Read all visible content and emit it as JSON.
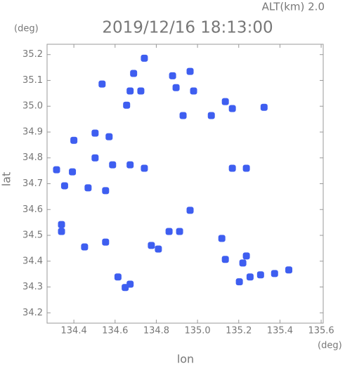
{
  "chart_data": {
    "type": "scatter",
    "title": "2019/12/16 18:13:00",
    "subtitle": "ALT(km)  2.0",
    "y_unit": "(deg)",
    "x_unit": "(deg)",
    "ylabel": "lat",
    "xlabel": "lon",
    "xlim": [
      134.27,
      135.61
    ],
    "ylim": [
      34.16,
      35.24
    ],
    "xticks": [
      134.4,
      134.6,
      134.8,
      {
        "value": 135,
        "label": "135.0"
      },
      135.2,
      135.4,
      135.6
    ],
    "yticks": [
      34.2,
      34.3,
      34.4,
      34.5,
      34.6,
      34.7,
      34.8,
      34.9,
      {
        "value": 35,
        "label": "35.0"
      },
      35.1,
      35.2
    ],
    "color": "#3e5ef0",
    "x": [
      134.537,
      134.69,
      134.742,
      134.673,
      134.725,
      134.879,
      134.964,
      134.896,
      134.981,
      135.135,
      135.169,
      135.323,
      135.067,
      134.93,
      134.656,
      134.503,
      134.4,
      134.571,
      134.503,
      134.588,
      134.673,
      134.742,
      134.316,
      134.393,
      134.355,
      134.469,
      134.554,
      135.169,
      135.237,
      134.34,
      134.34,
      134.862,
      134.913,
      134.81,
      134.776,
      134.554,
      134.452,
      135.118,
      135.22,
      135.255,
      135.203,
      135.306,
      135.374,
      135.443,
      135.237,
      134.673,
      134.649,
      134.614,
      135.135,
      134.964
    ],
    "y": [
      35.086,
      35.127,
      35.186,
      35.059,
      35.059,
      35.118,
      35.135,
      35.072,
      35.059,
      35.018,
      34.991,
      34.996,
      34.964,
      34.964,
      35.004,
      34.896,
      34.868,
      34.882,
      34.8,
      34.773,
      34.773,
      34.76,
      34.754,
      34.746,
      34.692,
      34.684,
      34.673,
      34.76,
      34.76,
      34.542,
      34.515,
      34.515,
      34.515,
      34.447,
      34.461,
      34.474,
      34.455,
      34.488,
      34.393,
      34.339,
      34.32,
      34.347,
      34.352,
      34.366,
      34.42,
      34.311,
      34.298,
      34.339,
      34.407,
      34.597
    ]
  }
}
